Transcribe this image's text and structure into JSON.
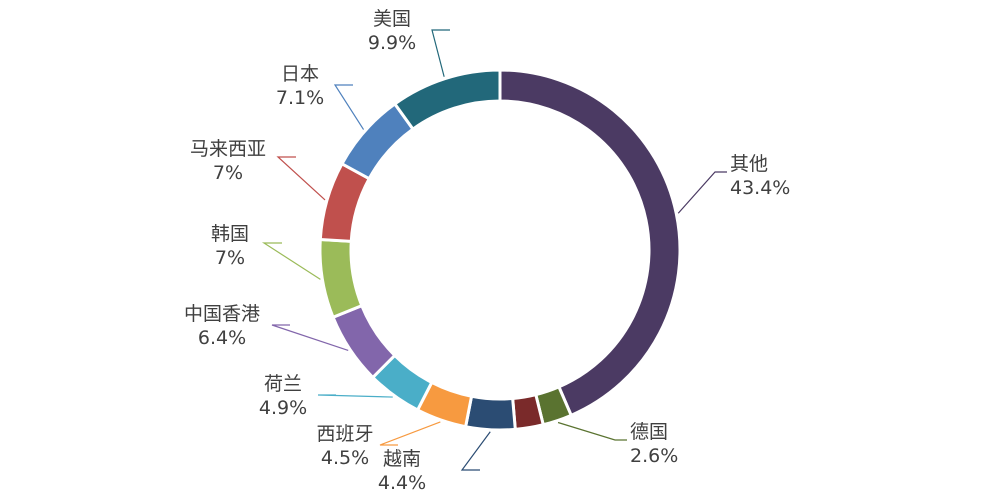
{
  "chart_data": {
    "type": "pie",
    "variant": "donut",
    "title": "",
    "legend": "none",
    "categories": [
      "其他",
      "德国",
      "",
      "越南",
      "西班牙",
      "荷兰",
      "中国香港",
      "韩国",
      "马来西亚",
      "日本",
      "美国"
    ],
    "values": [
      43.4,
      2.6,
      2.5,
      4.4,
      4.5,
      4.9,
      6.4,
      7.0,
      7.0,
      7.1,
      9.9
    ],
    "value_labels": [
      "43.4%",
      "2.6%",
      "",
      "4.4%",
      "4.5%",
      "4.9%",
      "6.4%",
      "7%",
      "7%",
      "7.1%",
      "9.9%"
    ],
    "colors": [
      "#4b3a63",
      "#5a7330",
      "#7a2a2a",
      "#2b4c73",
      "#f79a40",
      "#4aaec8",
      "#8266ab",
      "#9bbb59",
      "#c0504d",
      "#4f81bd",
      "#22687a"
    ],
    "start": "12 o'clock",
    "direction": "clockwise",
    "leader_lines": true
  }
}
